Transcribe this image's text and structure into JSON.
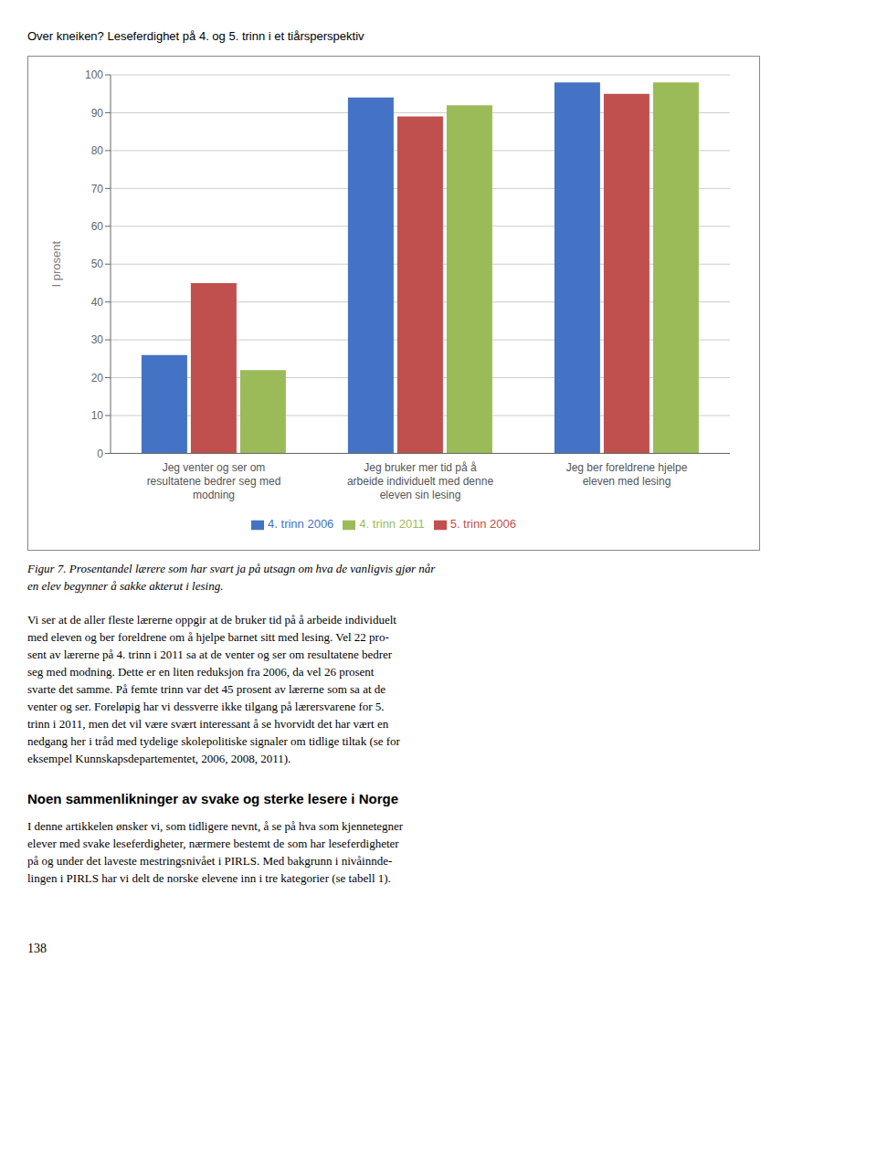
{
  "chart_data": {
    "type": "bar",
    "title": "Over kneiken? Leseferdighet på 4. og 5. trinn i et tiårsperspektiv",
    "categories": [
      "Jeg venter og ser om\nresultatene bedrer seg med\nmodning",
      "Jeg bruker mer tid på å\narbeide individuelt med denne\neleven sin lesing",
      "Jeg ber foreldrene hjelpe\neleven med lesing"
    ],
    "series": [
      {
        "name": "4. trinn 2006",
        "color": "#4472C4",
        "values": [
          26,
          94,
          98
        ]
      },
      {
        "name": "5. trinn 2006",
        "color": "#C0504D",
        "values": [
          45,
          89,
          95
        ]
      },
      {
        "name": "4. trinn 2011",
        "color": "#9BBB59",
        "values": [
          22,
          92,
          98
        ]
      }
    ],
    "y_label": "I prosent",
    "ylim": [
      0,
      100
    ],
    "yticks": [
      0,
      10,
      20,
      30,
      40,
      50,
      60,
      70,
      80,
      90,
      100
    ],
    "grid": true,
    "legend": "bottom",
    "annotations": [
      "Figur 7. Prosentandel lærere som har svart ja på utsagn om hva de vanligvis gjør når\nen elev begynner å sakke akterut i lesing.",
      "Vi ser at de aller fleste lærerne oppgir at de bruker tid på å arbeide individuelt\nmed eleven og ber foreldrene om å hjelpe barnet sitt med lesing. Vel 22 pro-\nsent av lærerne på 4. trinn i 2011 sa at de venter og ser om resultatene bedrer\nseg med modning. Dette er en liten reduksjon fra 2006, da vel 26 prosent\nsvarte det samme. På femte trinn var det 45 prosent av lærerne som sa at de\nventer og ser. Foreløpig har vi dessverre ikke tilgang på lærersvarene for 5.\ntrinn i 2011, men det vil være svært interessant å se hvorvidt det har vært en\nnedgang her i tråd med tydelige skolepolitiske signaler om tidlige tiltak (se for\neksempel Kunnskapsdepartementet, 2006, 2008, 2011).",
      "Noen sammenlikninger av svake og sterke lesere i Norge",
      "I denne artikkelen ønsker vi, som tidligere nevnt, å se på hva som kjennetegner\nelever med svake leseferdigheter, nærmere bestemt de som har leseferdigheter\npå og under det laveste mestringsnivået i PIRLS. Med bakgrunn i nivåinnde-\nlingen i PIRLS har vi delt de norske elevene inn i tre kategorier (se tabell 1).",
      "138"
    ]
  }
}
